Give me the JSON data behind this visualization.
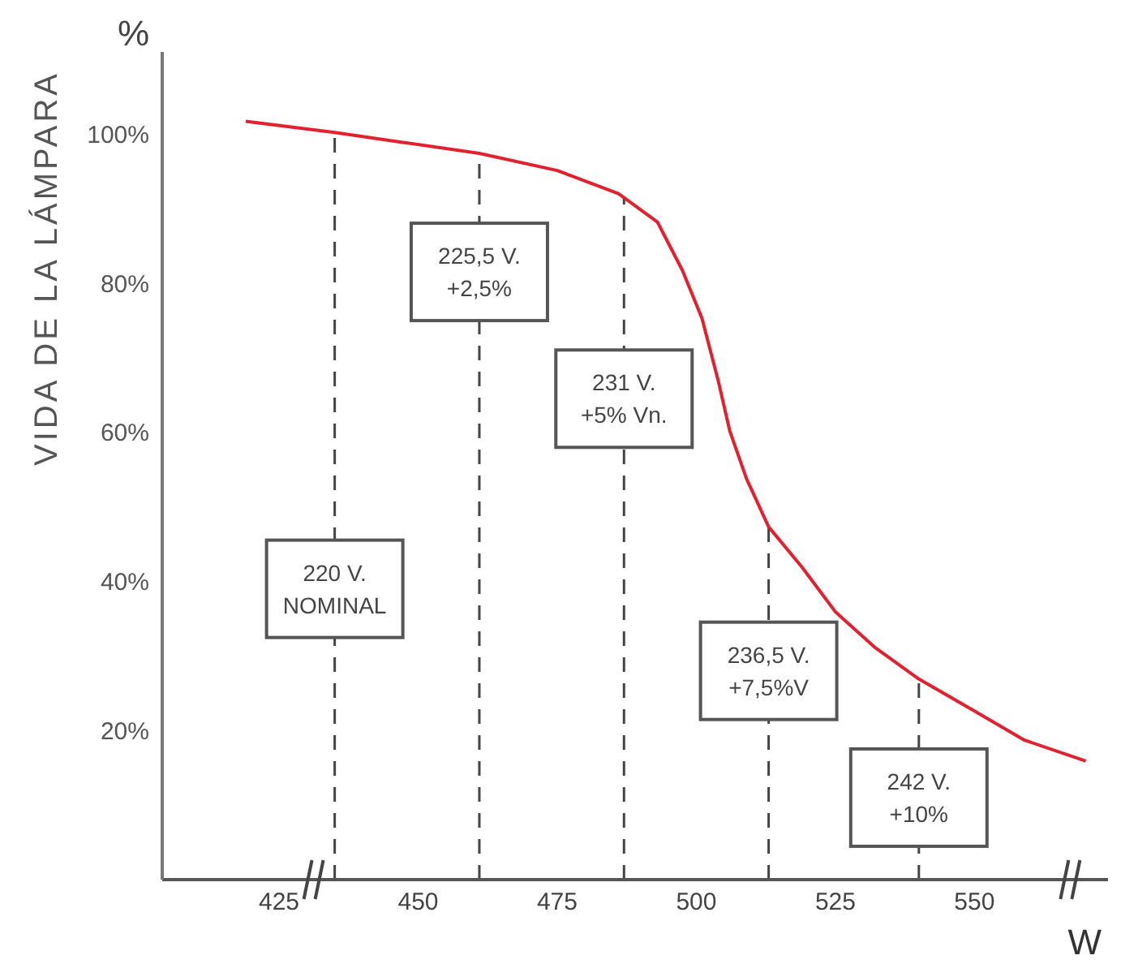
{
  "chart_data": {
    "type": "line",
    "ylabel": "VIDA DE LA LÁMPARA",
    "xlabel": "W",
    "x": [
      419,
      435,
      447,
      461,
      475,
      486,
      493,
      497.5,
      501,
      504,
      506,
      509,
      513,
      519,
      525,
      532,
      540,
      550,
      559,
      570
    ],
    "series": [
      {
        "color": "#e3202e",
        "values": [
          101.7,
          100.2,
          98.9,
          97.4,
          95.1,
          92,
          88.2,
          81.7,
          75.3,
          66.7,
          60.2,
          53.8,
          47.3,
          41.9,
          35.9,
          31.2,
          26.9,
          22.6,
          18.7,
          15.9
        ]
      }
    ],
    "xlim": [
      404,
      574
    ],
    "xticks": [
      425,
      450,
      475,
      500,
      525,
      550
    ],
    "ylim": [
      0,
      111
    ],
    "yticks": [
      {
        "value": 20,
        "label": "20%"
      },
      {
        "value": 40,
        "label": "40%"
      },
      {
        "value": 60,
        "label": "60%"
      },
      {
        "value": 80,
        "label": "80%"
      },
      {
        "value": 100,
        "label": "100%"
      }
    ],
    "ref_lines": [
      {
        "axis": "x",
        "value": 435,
        "color": "#444444",
        "line_style": "dashed"
      },
      {
        "axis": "x",
        "value": 461,
        "color": "#444444",
        "line_style": "dashed"
      },
      {
        "axis": "x",
        "value": 487,
        "color": "#444444",
        "line_style": "dashed"
      },
      {
        "axis": "x",
        "value": 513,
        "color": "#444444",
        "line_style": "dashed"
      },
      {
        "axis": "x",
        "value": 540,
        "color": "#444444",
        "line_style": "dashed"
      }
    ],
    "annotations": [
      "%",
      {
        "text": "220 V.\nNOMINAL",
        "x": 435,
        "y": 39
      },
      {
        "text": "225,5 V.\n+2,5%",
        "x": 461,
        "y": 81.5
      },
      {
        "text": "231 V.\n+5% Vn.",
        "x": 487,
        "y": 64.5
      },
      {
        "text": "236,5 V.\n+7,5%V",
        "x": 513,
        "y": 28
      },
      {
        "text": "242 V.\n+10%",
        "x": 540,
        "y": 11
      }
    ],
    "grid": false,
    "legend": false,
    "marker": "none",
    "line_style": "solid"
  }
}
